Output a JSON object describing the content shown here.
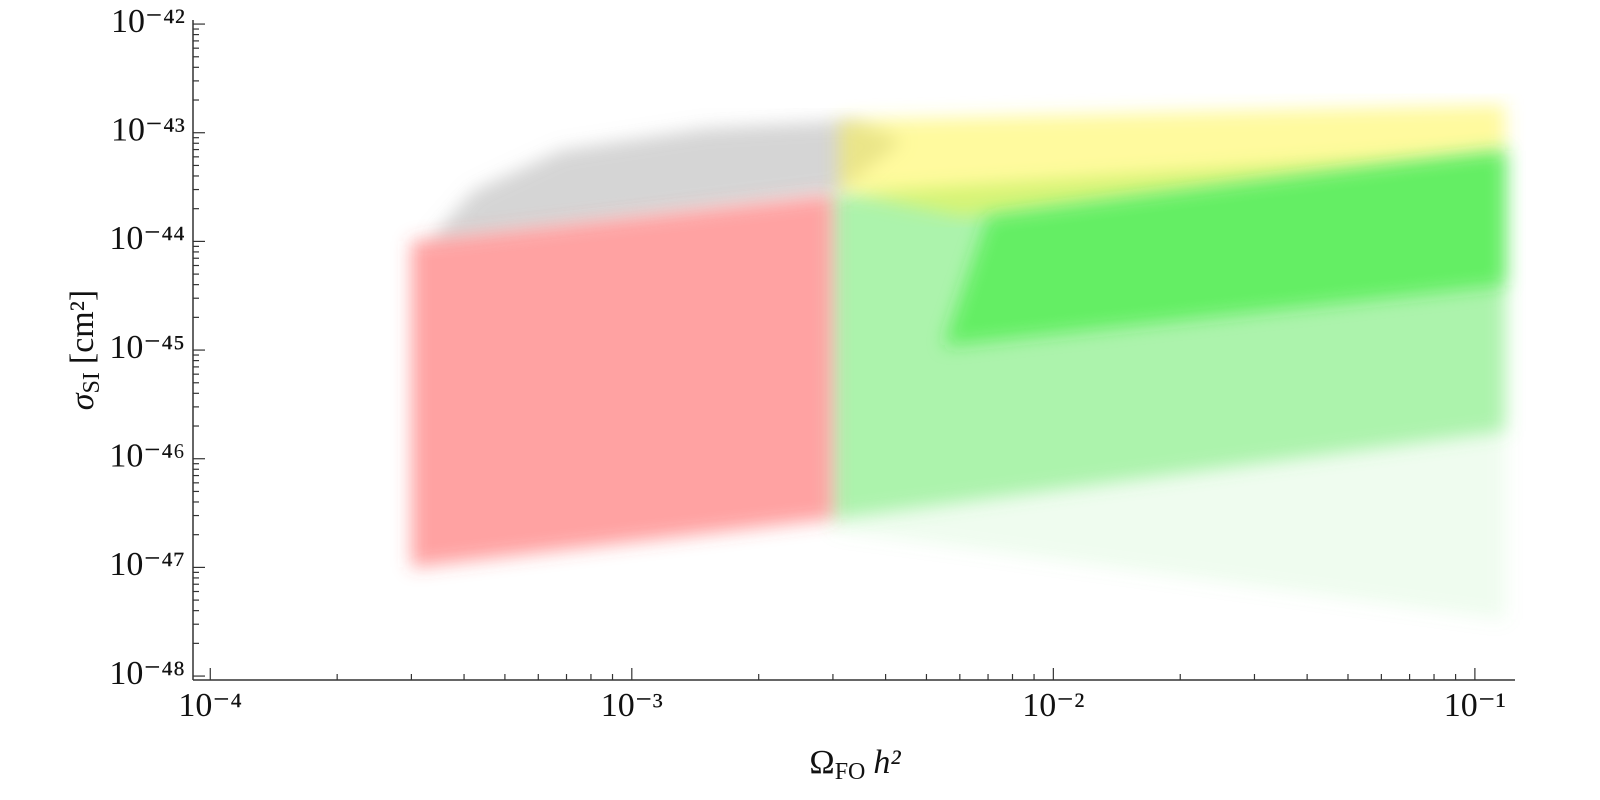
{
  "chart_data": {
    "type": "scatter",
    "xscale": "log",
    "yscale": "log",
    "xlabel": {
      "symbol": "Ω",
      "sub": "FO",
      "rest": "h²"
    },
    "ylabel": {
      "symbol": "σ",
      "sub": "SI",
      "rest": "[cm²]"
    },
    "xlim": [
      9.1e-05,
      0.1245
    ],
    "ylim": [
      9.2e-49,
      1.09e-42
    ],
    "xticks": [
      {
        "value": 0.0001,
        "label": "10⁻⁴"
      },
      {
        "value": 0.001,
        "label": "10⁻³"
      },
      {
        "value": 0.01,
        "label": "10⁻²"
      },
      {
        "value": 0.1,
        "label": "10⁻¹"
      }
    ],
    "yticks": [
      {
        "value": 1e-48,
        "label": "10⁻⁴⁸"
      },
      {
        "value": 1e-47,
        "label": "10⁻⁴⁷"
      },
      {
        "value": 1e-46,
        "label": "10⁻⁴⁶"
      },
      {
        "value": 1e-45,
        "label": "10⁻⁴⁵"
      },
      {
        "value": 1e-44,
        "label": "10⁻⁴⁴"
      },
      {
        "value": 1e-43,
        "label": "10⁻⁴³"
      },
      {
        "value": 1e-42,
        "label": "10⁻⁴²"
      }
    ],
    "xminorticks": [
      0.0002,
      0.0003,
      0.0004,
      0.0005,
      0.0006,
      0.0007,
      0.0008,
      0.0009,
      0.002,
      0.003,
      0.004,
      0.005,
      0.006,
      0.007,
      0.008,
      0.009,
      0.02,
      0.03,
      0.04,
      0.05,
      0.06,
      0.07,
      0.08,
      0.09
    ],
    "yminorticks": [
      2e-48,
      3e-48,
      4e-48,
      5e-48,
      6e-48,
      7e-48,
      8e-48,
      9e-48,
      2e-47,
      3e-47,
      4e-47,
      5e-47,
      6e-47,
      7e-47,
      8e-47,
      9e-47,
      2e-46,
      3e-46,
      4e-46,
      5e-46,
      6e-46,
      7e-46,
      8e-46,
      9e-46,
      2e-45,
      3e-45,
      4e-45,
      5e-45,
      6e-45,
      7e-45,
      8e-45,
      9e-45,
      2e-44,
      3e-44,
      4e-44,
      5e-44,
      6e-44,
      7e-44,
      8e-44,
      9e-44,
      2e-43,
      3e-43,
      4e-43,
      5e-43,
      6e-43,
      7e-43,
      8e-43,
      9e-43
    ],
    "series": [
      {
        "color": "rgba(120,230,120,0.12)",
        "x": [
          0.003,
          0.118,
          0.118,
          0.003
        ],
        "y": [
          2.7e-44,
          6.9e-44,
          3.3e-48,
          2.2e-47
        ]
      },
      {
        "color": "rgba(90,230,90,0.45)",
        "x": [
          0.003,
          0.118,
          0.118,
          0.003
        ],
        "y": [
          2.7e-44,
          6.9e-44,
          1.8e-46,
          2.8e-47
        ]
      },
      {
        "color": "rgba(150,150,150,0.4)",
        "x": [
          0.00033,
          0.00042,
          0.00068,
          0.0015,
          0.0033,
          0.0044,
          0.0031
        ],
        "y": [
          1e-44,
          2.9e-44,
          6.9e-44,
          1.1e-43,
          1.3e-43,
          8.5e-44,
          2.9e-44
        ]
      },
      {
        "color": "rgba(255,70,70,0.5)",
        "x": [
          0.0003,
          0.003,
          0.003,
          0.0003
        ],
        "y": [
          1e-44,
          2.7e-44,
          2.8e-47,
          1e-47
        ]
      },
      {
        "color": "rgba(255,245,60,0.5)",
        "x": [
          0.0031,
          0.118,
          0.118,
          0.0061,
          0.0031
        ],
        "y": [
          1.3e-43,
          1.8e-43,
          6.9e-44,
          1.7e-44,
          2.9e-44
        ]
      },
      {
        "color": "rgba(40,235,40,0.55)",
        "x": [
          0.007,
          0.118,
          0.118,
          0.0055
        ],
        "y": [
          1.7e-44,
          6.9e-44,
          4e-45,
          1.1e-45
        ]
      }
    ]
  }
}
